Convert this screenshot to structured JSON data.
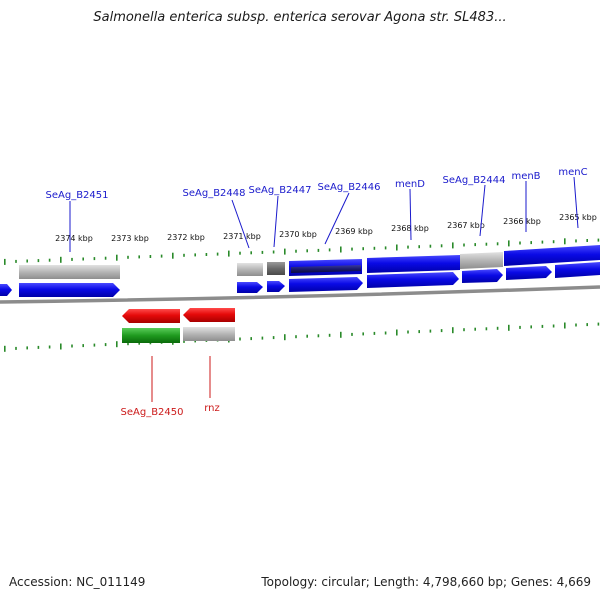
{
  "title": "Salmonella enterica subsp. enterica serovar Agona str. SL483...",
  "footer": {
    "accession": "Accession: NC_011149",
    "summary": "Topology: circular; Length: 4,798,660 bp; Genes: 4,669"
  },
  "ticks": [
    "2374 kbp",
    "2373 kbp",
    "2372 kbp",
    "2371 kbp",
    "2370 kbp",
    "2369 kbp",
    "2368 kbp",
    "2367 kbp",
    "2366 kbp",
    "2365 kbp"
  ],
  "genes_forward": [
    {
      "label": "SeAg_B2451",
      "color": "#1a1acc"
    },
    {
      "label": "SeAg_B2448",
      "color": "#1a1acc"
    },
    {
      "label": "SeAg_B2447",
      "color": "#1a1acc"
    },
    {
      "label": "SeAg_B2446",
      "color": "#1a1acc"
    },
    {
      "label": "menD",
      "color": "#1a1acc"
    },
    {
      "label": "SeAg_B2444",
      "color": "#1a1acc"
    },
    {
      "label": "menB",
      "color": "#1a1acc"
    },
    {
      "label": "menC",
      "color": "#1a1acc"
    }
  ],
  "genes_reverse": [
    {
      "label": "SeAg_B2450",
      "color": "#cc1a1a"
    },
    {
      "label": "rnz",
      "color": "#cc1a1a"
    }
  ],
  "colors": {
    "forward_cds": "#0a0ae6",
    "reverse_cds": "#e60a0a",
    "gene_grey": "#b5b5b5",
    "dark_grey": "#666666",
    "dark_blue": "#1a1a6e",
    "green": "#1f9a1f",
    "tick_green": "#2a8a2a",
    "backbone": "#8c8c8c"
  }
}
